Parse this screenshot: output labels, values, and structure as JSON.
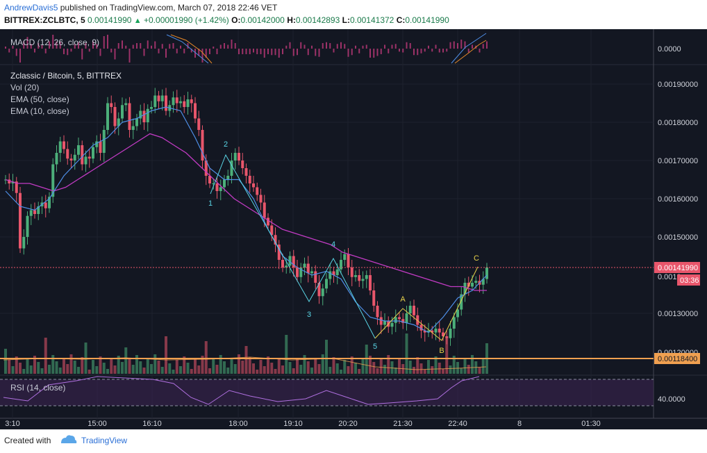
{
  "header": {
    "author": "AndrewDavis5",
    "published_text": "published on TradingView.com, March 07, 2018 22:46 VET",
    "symbol": "BITTREX:ZCLBTC, 5",
    "last": "0.00141990",
    "change": "+0.00001990 (+1.42%)",
    "o_label": "O:",
    "o_value": "0.00142000",
    "h_label": "H:",
    "h_value": "0.00142893",
    "l_label": "L:",
    "l_value": "0.00141372",
    "c_label": "C:",
    "c_value": "0.00141990"
  },
  "footer": {
    "created_with": "Created with",
    "brand": "TradingView"
  },
  "panes": {
    "macd": {
      "label": "MACD (12, 26, close, 9)",
      "value_label": "0.0000"
    },
    "main": {
      "title": "Zclassic / Bitcoin, 5, BITTREX",
      "indicators": [
        "Vol (20)",
        "EMA (50, close)",
        "EMA (10, close)"
      ]
    },
    "rsi": {
      "label": "RSI (14, close)",
      "value_label": "40.0000"
    }
  },
  "price_tags": {
    "last": "0.00141990",
    "countdown": "03:36",
    "partial": "0.0013",
    "hline": "0.00118400",
    "partial_low": "0.00120000"
  },
  "colors": {
    "bg": "#131722",
    "up": "#4caf7a",
    "down": "#e8566b",
    "ema10": "#4f8fe8",
    "ema50": "#c23bc4",
    "wave": "#5ad6e6",
    "abc": "#e8d24a",
    "hline": "#f0a050"
  },
  "chart_data": {
    "type": "candlestick",
    "symbol": "BITTREX:ZCLBTC",
    "interval": "5",
    "y_ticks": [
      0.0019,
      0.0018,
      0.0017,
      0.0016,
      0.0015,
      0.0013
    ],
    "y_tick_labels": [
      "0.00190000",
      "0.00180000",
      "0.00170000",
      "0.00160000",
      "0.00150000",
      "0.00130000"
    ],
    "ylim": [
      0.00117,
      0.00196
    ],
    "x_tick_labels": [
      "3:10",
      "15:00",
      "16:10",
      "18:00",
      "19:10",
      "20:20",
      "21:30",
      "22:40",
      "8",
      "01:30"
    ],
    "close": [
      0.00165,
      0.00164,
      0.001645,
      0.001615,
      0.00147,
      0.0015,
      0.001555,
      0.00157,
      0.00156,
      0.00158,
      0.00159,
      0.001575,
      0.001605,
      0.00169,
      0.00172,
      0.00175,
      0.00173,
      0.001705,
      0.0017,
      0.001715,
      0.00174,
      0.00169,
      0.00171,
      0.001705,
      0.001735,
      0.00175,
      0.00172,
      0.00178,
      0.00185,
      0.00184,
      0.00179,
      0.00181,
      0.001845,
      0.00185,
      0.00178,
      0.00179,
      0.00181,
      0.00183,
      0.0018,
      0.001835,
      0.00184,
      0.00187,
      0.001855,
      0.00187,
      0.00183,
      0.001845,
      0.001865,
      0.00185,
      0.001855,
      0.00184,
      0.00186,
      0.00185,
      0.00181,
      0.00178,
      0.0017,
      0.00166,
      0.00164,
      0.00164,
      0.00162,
      0.00163,
      0.00165,
      0.00166,
      0.0017,
      0.00172,
      0.0017,
      0.00168,
      0.00166,
      0.00164,
      0.00163,
      0.00161,
      0.00159,
      0.00155,
      0.00153,
      0.001505,
      0.00148,
      0.00144,
      0.00142,
      0.001425,
      0.00145,
      0.00142,
      0.001395,
      0.00142,
      0.00143,
      0.001405,
      0.00141,
      0.00138,
      0.001345,
      0.001365,
      0.00139,
      0.00141,
      0.0014,
      0.001415,
      0.00144,
      0.001455,
      0.00142,
      0.001395,
      0.0014,
      0.001385,
      0.00139,
      0.0014,
      0.00136,
      0.00132,
      0.00129,
      0.00127,
      0.00128,
      0.001265,
      0.001275,
      0.00129,
      0.001285,
      0.001275,
      0.0013,
      0.00132,
      0.001295,
      0.00127,
      0.001255,
      0.00125,
      0.001255,
      0.00125,
      0.00126,
      0.00125,
      0.00124,
      0.001235,
      0.00126,
      0.00129,
      0.00131,
      0.00135,
      0.00138,
      0.00137,
      0.00138,
      0.001385,
      0.001375,
      0.00139,
      0.00142
    ],
    "ema_50": [
      0.00165,
      0.00164,
      0.00164,
      0.00163,
      0.00162,
      0.00163,
      0.00165,
      0.00167,
      0.00169,
      0.00171,
      0.00173,
      0.00175,
      0.00177,
      0.00176,
      0.00174,
      0.00172,
      0.00169,
      0.00166,
      0.00163,
      0.0016,
      0.00158,
      0.00156,
      0.00154,
      0.00152,
      0.00151,
      0.0015,
      0.00149,
      0.00148,
      0.00146,
      0.00145,
      0.00144,
      0.00143,
      0.00142,
      0.00141,
      0.0014,
      0.00139,
      0.00138,
      0.00137,
      0.00137,
      0.00136,
      0.00136
    ],
    "ema_10": [
      0.00162,
      0.00158,
      0.00157,
      0.0016,
      0.00166,
      0.0017,
      0.00174,
      0.00176,
      0.0018,
      0.00181,
      0.00183,
      0.00184,
      0.00183,
      0.00176,
      0.00168,
      0.00165,
      0.00165,
      0.0016,
      0.00152,
      0.00145,
      0.00142,
      0.0014,
      0.00141,
      0.00139,
      0.00133,
      0.00129,
      0.00128,
      0.00128,
      0.00127,
      0.00125,
      0.00129,
      0.00134,
      0.00136,
      0.0014
    ],
    "wave_labels": [
      "1",
      "2",
      "3",
      "4",
      "5",
      "A",
      "B",
      "C"
    ],
    "hline_price": 0.001184,
    "rsi_levels": [
      70,
      30
    ],
    "rsi_value_label": "40.0000",
    "macd_value_label": "0.0000"
  }
}
